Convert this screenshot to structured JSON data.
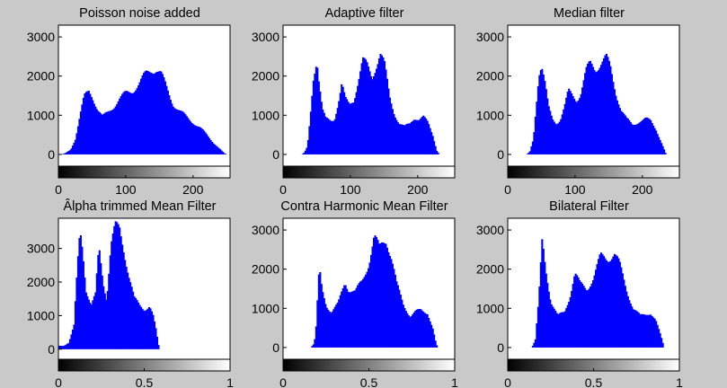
{
  "chart_data": [
    {
      "type": "histogram",
      "title": "Poisson noise added",
      "xlim": [
        0,
        255
      ],
      "ylim": [
        -300,
        3300
      ],
      "xticks": [
        {
          "v": 0,
          "label": "0"
        },
        {
          "v": 100,
          "label": "100"
        },
        {
          "v": 200,
          "label": "200"
        }
      ],
      "yticks": [
        {
          "v": 0,
          "label": "0"
        },
        {
          "v": 1000,
          "label": "1000"
        },
        {
          "v": 2000,
          "label": "2000"
        },
        {
          "v": 3000,
          "label": "3000"
        }
      ],
      "profile": [
        [
          4,
          0
        ],
        [
          10,
          30
        ],
        [
          18,
          120
        ],
        [
          25,
          400
        ],
        [
          32,
          1000
        ],
        [
          38,
          1450
        ],
        [
          45,
          1620
        ],
        [
          50,
          1500
        ],
        [
          58,
          1150
        ],
        [
          65,
          950
        ],
        [
          72,
          1050
        ],
        [
          80,
          1200
        ],
        [
          90,
          1400
        ],
        [
          100,
          1550
        ],
        [
          110,
          1650
        ],
        [
          120,
          1800
        ],
        [
          130,
          2050
        ],
        [
          138,
          2180
        ],
        [
          145,
          2200
        ],
        [
          152,
          2050
        ],
        [
          160,
          1700
        ],
        [
          170,
          1300
        ],
        [
          180,
          1100
        ],
        [
          190,
          950
        ],
        [
          200,
          820
        ],
        [
          210,
          680
        ],
        [
          220,
          500
        ],
        [
          230,
          300
        ],
        [
          240,
          130
        ],
        [
          246,
          30
        ],
        [
          250,
          0
        ]
      ]
    },
    {
      "type": "histogram",
      "title": "Adaptive filter",
      "xlim": [
        0,
        255
      ],
      "ylim": [
        -300,
        3300
      ],
      "xticks": [
        {
          "v": 0,
          "label": "0"
        },
        {
          "v": 100,
          "label": "100"
        },
        {
          "v": 200,
          "label": "200"
        }
      ],
      "yticks": [
        {
          "v": 0,
          "label": "0"
        },
        {
          "v": 1000,
          "label": "1000"
        },
        {
          "v": 2000,
          "label": "2000"
        },
        {
          "v": 3000,
          "label": "3000"
        }
      ],
      "profile": [
        [
          28,
          0
        ],
        [
          32,
          60
        ],
        [
          36,
          200
        ],
        [
          40,
          900
        ],
        [
          45,
          2000
        ],
        [
          50,
          2500
        ],
        [
          53,
          1900
        ],
        [
          58,
          1150
        ],
        [
          63,
          900
        ],
        [
          70,
          850
        ],
        [
          76,
          900
        ],
        [
          82,
          1350
        ],
        [
          87,
          1800
        ],
        [
          92,
          1400
        ],
        [
          98,
          1250
        ],
        [
          105,
          1400
        ],
        [
          110,
          1800
        ],
        [
          118,
          2400
        ],
        [
          124,
          2250
        ],
        [
          132,
          1950
        ],
        [
          138,
          2300
        ],
        [
          144,
          2600
        ],
        [
          150,
          2300
        ],
        [
          158,
          1450
        ],
        [
          165,
          1050
        ],
        [
          172,
          800
        ],
        [
          180,
          700
        ],
        [
          188,
          780
        ],
        [
          195,
          950
        ],
        [
          202,
          900
        ],
        [
          208,
          950
        ],
        [
          215,
          800
        ],
        [
          222,
          500
        ],
        [
          228,
          100
        ],
        [
          232,
          0
        ]
      ]
    },
    {
      "type": "histogram",
      "title": "Median filter",
      "xlim": [
        0,
        255
      ],
      "ylim": [
        -300,
        3300
      ],
      "xticks": [
        {
          "v": 0,
          "label": "0"
        },
        {
          "v": 100,
          "label": "100"
        },
        {
          "v": 200,
          "label": "200"
        }
      ],
      "yticks": [
        {
          "v": 0,
          "label": "0"
        },
        {
          "v": 1000,
          "label": "1000"
        },
        {
          "v": 2000,
          "label": "2000"
        },
        {
          "v": 3000,
          "label": "3000"
        }
      ],
      "profile": [
        [
          28,
          0
        ],
        [
          33,
          80
        ],
        [
          38,
          400
        ],
        [
          42,
          1250
        ],
        [
          46,
          2100
        ],
        [
          50,
          2300
        ],
        [
          55,
          1800
        ],
        [
          60,
          1200
        ],
        [
          66,
          900
        ],
        [
          72,
          800
        ],
        [
          78,
          900
        ],
        [
          84,
          1200
        ],
        [
          90,
          1600
        ],
        [
          96,
          1500
        ],
        [
          102,
          1400
        ],
        [
          108,
          1550
        ],
        [
          116,
          2100
        ],
        [
          122,
          2300
        ],
        [
          130,
          2200
        ],
        [
          138,
          2350
        ],
        [
          146,
          2450
        ],
        [
          152,
          2200
        ],
        [
          160,
          1600
        ],
        [
          168,
          1150
        ],
        [
          176,
          900
        ],
        [
          185,
          750
        ],
        [
          195,
          850
        ],
        [
          205,
          900
        ],
        [
          212,
          850
        ],
        [
          220,
          650
        ],
        [
          228,
          300
        ],
        [
          235,
          0
        ]
      ]
    },
    {
      "type": "histogram",
      "title": "Âlpha trimmed Mean Filter",
      "xlim": [
        0,
        1
      ],
      "ylim": [
        -300,
        3900
      ],
      "xticks": [
        {
          "v": 0,
          "label": "0"
        },
        {
          "v": 0.5,
          "label": "0.5"
        },
        {
          "v": 1,
          "label": "1"
        }
      ],
      "yticks": [
        {
          "v": 0,
          "label": "0"
        },
        {
          "v": 1000,
          "label": "1000"
        },
        {
          "v": 2000,
          "label": "2000"
        },
        {
          "v": 3000,
          "label": "3000"
        }
      ],
      "profile": [
        [
          0.0,
          100
        ],
        [
          0.03,
          100
        ],
        [
          0.06,
          200
        ],
        [
          0.09,
          700
        ],
        [
          0.11,
          2400
        ],
        [
          0.125,
          3500
        ],
        [
          0.14,
          3000
        ],
        [
          0.16,
          1800
        ],
        [
          0.19,
          1300
        ],
        [
          0.215,
          1600
        ],
        [
          0.235,
          3000
        ],
        [
          0.26,
          2000
        ],
        [
          0.28,
          1500
        ],
        [
          0.305,
          3100
        ],
        [
          0.33,
          3600
        ],
        [
          0.355,
          3550
        ],
        [
          0.38,
          3000
        ],
        [
          0.41,
          2200
        ],
        [
          0.44,
          1500
        ],
        [
          0.47,
          1300
        ],
        [
          0.5,
          1200
        ],
        [
          0.53,
          1300
        ],
        [
          0.55,
          1000
        ],
        [
          0.57,
          500
        ],
        [
          0.58,
          150
        ],
        [
          0.59,
          0
        ]
      ]
    },
    {
      "type": "histogram",
      "title": "Contra Harmonic Mean Filter",
      "xlim": [
        0,
        1
      ],
      "ylim": [
        -300,
        3300
      ],
      "xticks": [
        {
          "v": 0,
          "label": "0"
        },
        {
          "v": 0.5,
          "label": "0.5"
        },
        {
          "v": 1,
          "label": "1"
        }
      ],
      "yticks": [
        {
          "v": 0,
          "label": "0"
        },
        {
          "v": 1000,
          "label": "1000"
        },
        {
          "v": 2000,
          "label": "2000"
        },
        {
          "v": 3000,
          "label": "3000"
        }
      ],
      "profile": [
        [
          0.16,
          0
        ],
        [
          0.18,
          100
        ],
        [
          0.19,
          400
        ],
        [
          0.2,
          1200
        ],
        [
          0.21,
          2000
        ],
        [
          0.225,
          1500
        ],
        [
          0.25,
          1100
        ],
        [
          0.28,
          900
        ],
        [
          0.32,
          1100
        ],
        [
          0.36,
          1700
        ],
        [
          0.38,
          1500
        ],
        [
          0.42,
          1400
        ],
        [
          0.46,
          1700
        ],
        [
          0.5,
          2200
        ],
        [
          0.53,
          2800
        ],
        [
          0.56,
          2500
        ],
        [
          0.58,
          2700
        ],
        [
          0.6,
          2800
        ],
        [
          0.63,
          2300
        ],
        [
          0.66,
          1600
        ],
        [
          0.7,
          1100
        ],
        [
          0.74,
          800
        ],
        [
          0.77,
          900
        ],
        [
          0.8,
          950
        ],
        [
          0.84,
          900
        ],
        [
          0.87,
          500
        ],
        [
          0.89,
          100
        ],
        [
          0.9,
          0
        ]
      ]
    },
    {
      "type": "histogram",
      "title": "Bilateral Filter",
      "xlim": [
        0,
        1
      ],
      "ylim": [
        -300,
        3300
      ],
      "xticks": [
        {
          "v": 0,
          "label": "0"
        },
        {
          "v": 0.5,
          "label": "0.5"
        },
        {
          "v": 1,
          "label": "1"
        }
      ],
      "yticks": [
        {
          "v": 0,
          "label": "0"
        },
        {
          "v": 1000,
          "label": "1000"
        },
        {
          "v": 2000,
          "label": "2000"
        },
        {
          "v": 3000,
          "label": "3000"
        }
      ],
      "profile": [
        [
          0.14,
          0
        ],
        [
          0.16,
          200
        ],
        [
          0.18,
          1200
        ],
        [
          0.2,
          2700
        ],
        [
          0.22,
          2000
        ],
        [
          0.25,
          1200
        ],
        [
          0.29,
          800
        ],
        [
          0.33,
          900
        ],
        [
          0.36,
          1300
        ],
        [
          0.39,
          1900
        ],
        [
          0.42,
          1600
        ],
        [
          0.46,
          1500
        ],
        [
          0.5,
          1800
        ],
        [
          0.54,
          2300
        ],
        [
          0.58,
          2300
        ],
        [
          0.62,
          2400
        ],
        [
          0.65,
          2100
        ],
        [
          0.69,
          1500
        ],
        [
          0.73,
          1000
        ],
        [
          0.77,
          800
        ],
        [
          0.8,
          850
        ],
        [
          0.83,
          900
        ],
        [
          0.86,
          700
        ],
        [
          0.89,
          300
        ],
        [
          0.91,
          0
        ]
      ]
    }
  ]
}
